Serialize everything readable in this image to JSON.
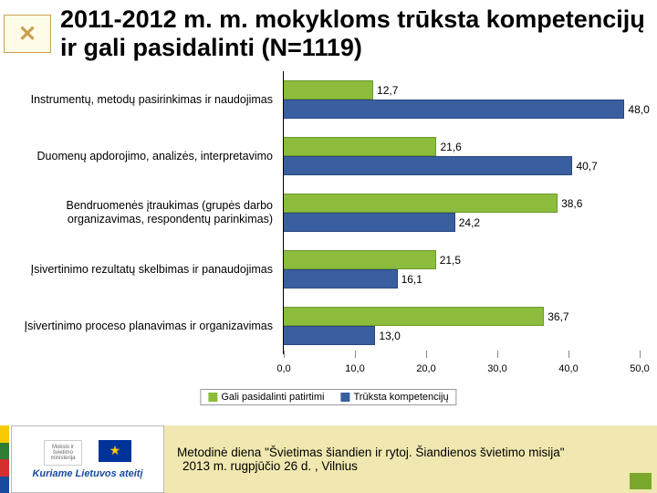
{
  "title": "2011-2012 m. m. mokykloms trūksta kompetencijų ir gali pasidalinti (N=1119)",
  "chart": {
    "type": "horizontal-grouped-bar",
    "xmax": 50,
    "xtick_step": 10,
    "x_ticks": [
      "0,0",
      "10,0",
      "20,0",
      "30,0",
      "40,0",
      "50,0"
    ],
    "series_a": {
      "label": "Gali pasidalinti patirtimi",
      "color": "#8bbc3b"
    },
    "series_b": {
      "label": "Trūksta kompetencijų",
      "color": "#3a5fa0"
    },
    "rows": [
      {
        "cat": "Instrumentų, metodų pasirinkimas ir naudojimas",
        "a": 12.7,
        "a_label": "12,7",
        "b": 48.0,
        "b_label": "48,0"
      },
      {
        "cat": "Duomenų apdorojimo, analizės, interpretavimo",
        "a": 21.6,
        "a_label": "21,6",
        "b": 40.7,
        "b_label": "40,7"
      },
      {
        "cat": "Bendruomenės įtraukimas (grupės darbo organizavimas, respondentų parinkimas)",
        "a": 38.6,
        "a_label": "38,6",
        "b": 24.2,
        "b_label": "24,2"
      },
      {
        "cat": "Įsivertinimo rezultatų skelbimas ir panaudojimas",
        "a": 21.5,
        "a_label": "21,5",
        "b": 16.1,
        "b_label": "16,1"
      },
      {
        "cat": "Įsivertinimo proceso planavimas ir organizavimas",
        "a": 36.7,
        "a_label": "36,7",
        "b": 13.0,
        "b_label": "13,0"
      }
    ]
  },
  "sponsor_line": "Kuriame Lietuvos ateitį",
  "footer_line1": "Metodinė diena \"Švietimas šiandien ir rytoj. Šiandienos švietimo misija\"",
  "footer_line2": "2013 m. rugpjūčio 26 d. , Vilnius",
  "flag_colors": [
    "#f6c900",
    "#2e7d32",
    "#d32f2f",
    "#1a4aa0"
  ]
}
